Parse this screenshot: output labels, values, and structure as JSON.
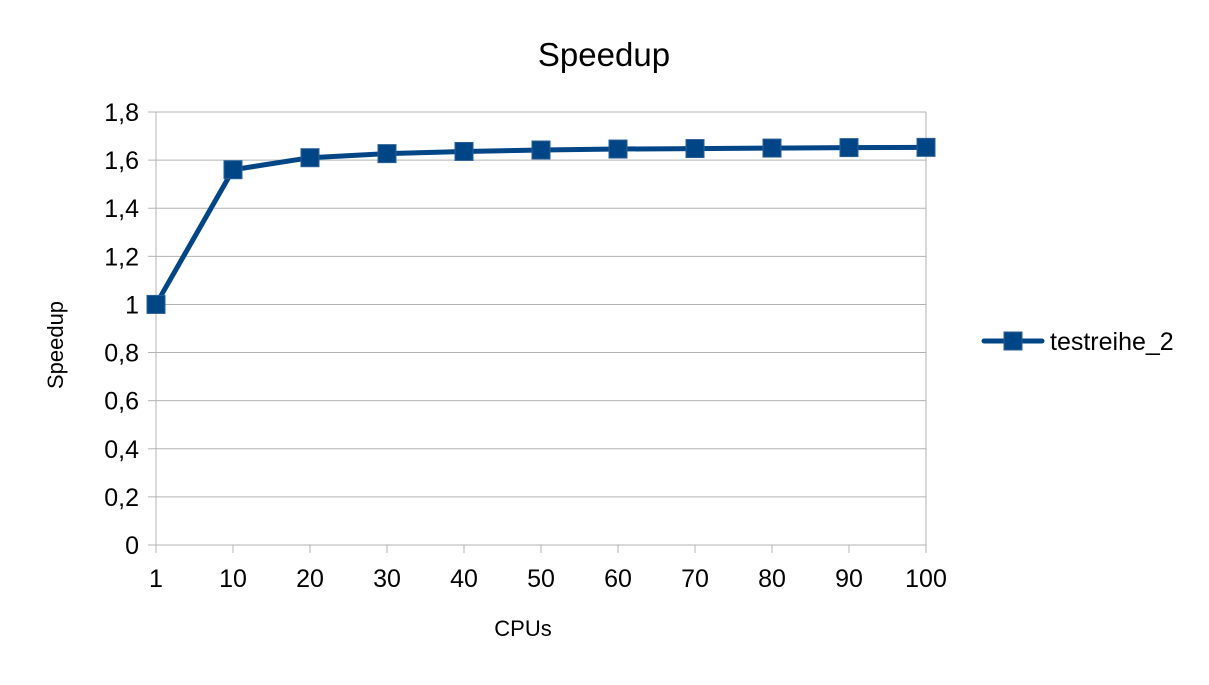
{
  "chart_data": {
    "type": "line",
    "title": "Speedup",
    "xlabel": "CPUs",
    "ylabel": "Speedup",
    "categories": [
      "1",
      "10",
      "20",
      "30",
      "40",
      "50",
      "60",
      "70",
      "80",
      "90",
      "100"
    ],
    "series": [
      {
        "name": "testreihe_2",
        "values": [
          1.0,
          1.56,
          1.61,
          1.627,
          1.636,
          1.642,
          1.646,
          1.648,
          1.65,
          1.652,
          1.653
        ],
        "color": "#004586",
        "marker": "square"
      }
    ],
    "ylim": [
      0,
      1.8
    ],
    "yticks": [
      "0",
      "0,2",
      "0,4",
      "0,6",
      "0,8",
      "1",
      "1,2",
      "1,4",
      "1,6",
      "1,8"
    ],
    "grid": true,
    "legend": "right",
    "colors": {
      "grid": "#b3b3b3",
      "axis": "#b3b3b3",
      "series": "#004586"
    }
  }
}
